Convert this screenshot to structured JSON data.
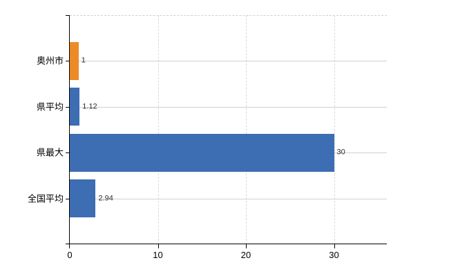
{
  "chart_data": {
    "type": "bar",
    "orientation": "horizontal",
    "title": "",
    "xlabel": "",
    "ylabel": "",
    "categories": [
      "奥州市",
      "県平均",
      "県最大",
      "全国平均"
    ],
    "values": [
      1,
      1.12,
      30,
      2.94
    ],
    "value_labels": [
      "1",
      "1.12",
      "30",
      "2.94"
    ],
    "bar_colors": [
      "#ec8a28",
      "#3d6db3",
      "#3d6db3",
      "#3d6db3"
    ],
    "x_ticks": [
      "0",
      "10",
      "20",
      "30"
    ],
    "x_tick_values": [
      0,
      10,
      20,
      30
    ],
    "xlim": [
      0,
      36
    ],
    "grid": true,
    "legend": false
  },
  "colors": {
    "bar_orange": "#ec8a28",
    "bar_blue": "#3d6db3",
    "axis_line": "#000000",
    "vertical_gridline": "#d8d8d8",
    "horizontal_gridline": "#ccd3cd",
    "plot_top_border": "#d0d0d0",
    "label_text": "#000000",
    "value_text": "#2b2b2b",
    "background": "#ffffff"
  }
}
